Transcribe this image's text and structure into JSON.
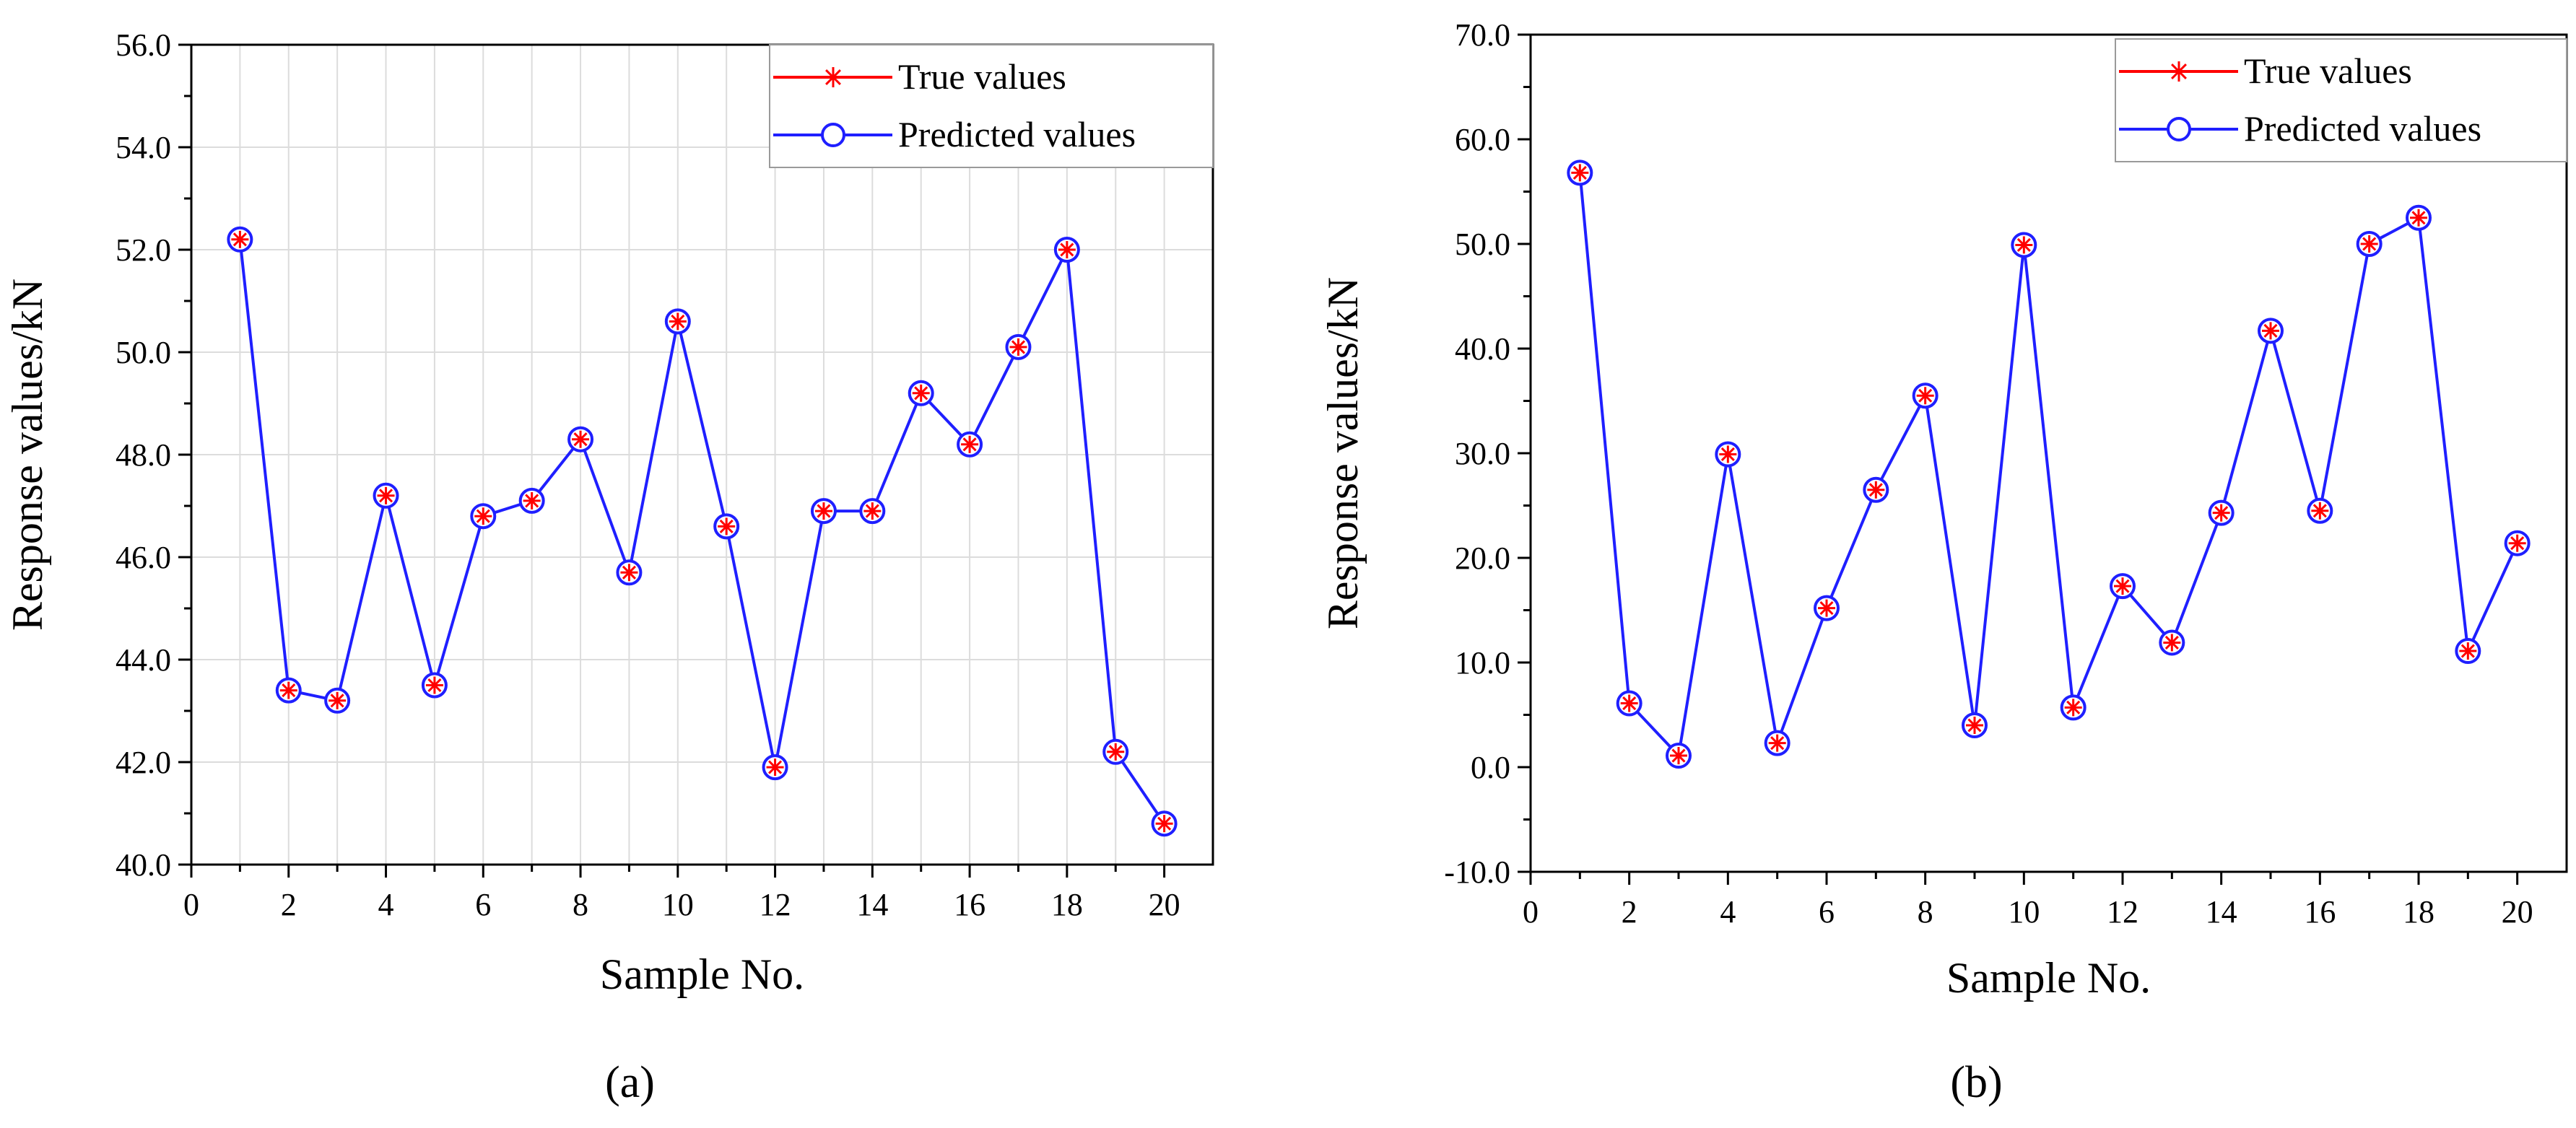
{
  "colors": {
    "true_series": "#ff0000",
    "predicted_series": "#1f1fff",
    "axis": "#000000",
    "grid": "#dcdcdc"
  },
  "chart_data": [
    {
      "panel_label": "(a)",
      "type": "line",
      "title": "",
      "xlabel": "Sample No.",
      "ylabel": "Response values/kN",
      "xlim": [
        0,
        21
      ],
      "ylim": [
        40.0,
        56.0
      ],
      "xticks": [
        0,
        2,
        4,
        6,
        8,
        10,
        12,
        14,
        16,
        18,
        20
      ],
      "yticks": [
        "40.0",
        "42.0",
        "44.0",
        "46.0",
        "48.0",
        "50.0",
        "52.0",
        "54.0",
        "56.0"
      ],
      "grid": true,
      "legend_position": "top-right",
      "x": [
        1,
        2,
        3,
        4,
        5,
        6,
        7,
        8,
        9,
        10,
        11,
        12,
        13,
        14,
        15,
        16,
        17,
        18,
        19,
        20
      ],
      "series": [
        {
          "name": "True values",
          "marker": "asterisk",
          "color": "#ff0000",
          "values": [
            52.2,
            43.4,
            43.2,
            47.2,
            43.5,
            46.8,
            47.1,
            48.3,
            45.7,
            50.6,
            46.6,
            41.9,
            46.9,
            46.9,
            49.2,
            48.2,
            50.1,
            52.0,
            42.2,
            40.8
          ]
        },
        {
          "name": "Predicted values",
          "marker": "circle",
          "color": "#1f1fff",
          "values": [
            52.2,
            43.4,
            43.2,
            47.2,
            43.5,
            46.8,
            47.1,
            48.3,
            45.7,
            50.6,
            46.6,
            41.9,
            46.9,
            46.9,
            49.2,
            48.2,
            50.1,
            52.0,
            42.2,
            40.8
          ]
        }
      ]
    },
    {
      "panel_label": "(b)",
      "type": "line",
      "title": "",
      "xlabel": "Sample No.",
      "ylabel": "Response values/kN",
      "xlim": [
        0,
        21
      ],
      "ylim": [
        -10.0,
        70.0
      ],
      "xticks": [
        0,
        2,
        4,
        6,
        8,
        10,
        12,
        14,
        16,
        18,
        20
      ],
      "yticks": [
        "-10.0",
        "0.0",
        "10.0",
        "20.0",
        "30.0",
        "40.0",
        "50.0",
        "60.0",
        "70.0"
      ],
      "grid": false,
      "legend_position": "top-right",
      "x": [
        1,
        2,
        3,
        4,
        5,
        6,
        7,
        8,
        9,
        10,
        11,
        12,
        13,
        14,
        15,
        16,
        17,
        18,
        19,
        20
      ],
      "series": [
        {
          "name": "True values",
          "marker": "asterisk",
          "color": "#ff0000",
          "values": [
            56.8,
            6.1,
            1.1,
            29.9,
            2.3,
            15.2,
            26.5,
            35.5,
            4.0,
            49.9,
            5.7,
            17.3,
            11.9,
            24.3,
            41.7,
            24.5,
            50.0,
            52.5,
            11.1,
            21.4
          ]
        },
        {
          "name": "Predicted values",
          "marker": "circle",
          "color": "#1f1fff",
          "values": [
            56.8,
            6.1,
            1.1,
            29.9,
            2.3,
            15.2,
            26.5,
            35.5,
            4.0,
            49.9,
            5.7,
            17.3,
            11.9,
            24.3,
            41.7,
            24.5,
            50.0,
            52.5,
            11.1,
            21.4
          ]
        }
      ]
    }
  ]
}
